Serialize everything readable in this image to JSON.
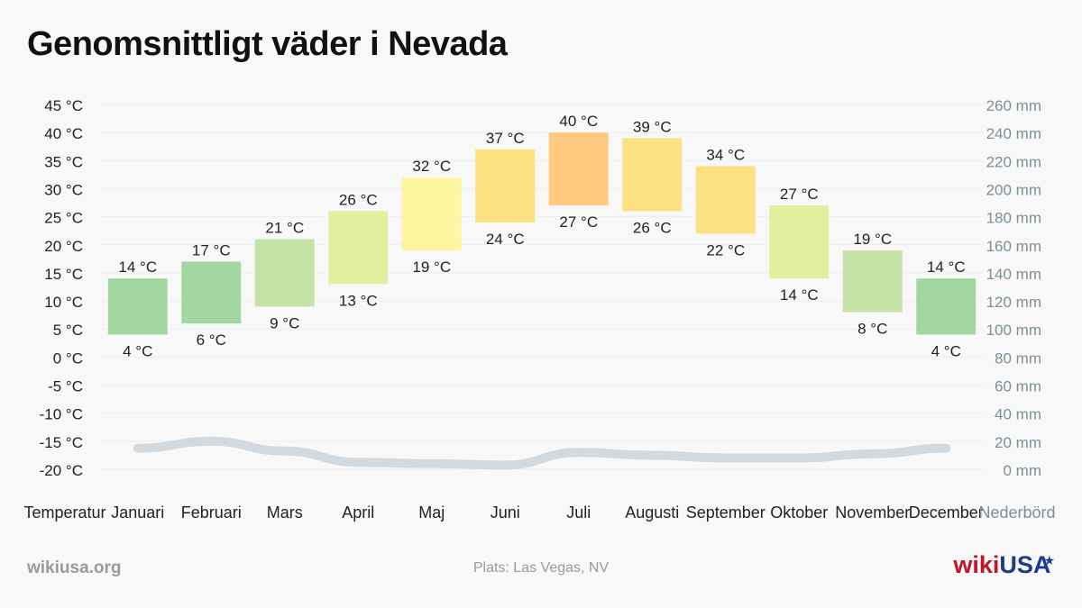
{
  "title": "Genomsnittligt väder i Nevada",
  "footer": {
    "source": "wikiusa.org",
    "location": "Plats: Las Vegas, NV",
    "brand_a": "wiki",
    "brand_b": "USA",
    "brand_star": "★"
  },
  "chart_data": {
    "type": "bar",
    "categories": [
      "Januari",
      "Februari",
      "Mars",
      "April",
      "Maj",
      "Juni",
      "Juli",
      "Augusti",
      "September",
      "Oktober",
      "November",
      "December"
    ],
    "row_label_left": "Temperatur",
    "row_label_right": "Nederbörd",
    "temp_unit": "°C",
    "precip_unit": "mm",
    "temp_ticks": [
      45,
      40,
      35,
      30,
      25,
      20,
      15,
      10,
      5,
      0,
      -5,
      -10,
      -15,
      -20
    ],
    "precip_ticks": [
      260,
      240,
      220,
      200,
      180,
      160,
      140,
      120,
      100,
      80,
      60,
      40,
      20,
      0
    ],
    "temp_range": [
      -20,
      45
    ],
    "precip_range": [
      0,
      260
    ],
    "series": [
      {
        "name": "max",
        "values": [
          14,
          17,
          21,
          26,
          32,
          37,
          40,
          39,
          34,
          27,
          19,
          14
        ]
      },
      {
        "name": "min",
        "values": [
          4,
          6,
          9,
          13,
          19,
          24,
          27,
          26,
          22,
          14,
          8,
          4
        ]
      },
      {
        "name": "precipitation",
        "values": [
          15,
          20,
          13,
          5,
          4,
          3,
          12,
          10,
          8,
          8,
          11,
          15
        ]
      }
    ],
    "colors": {
      "14": "#a3d7a1",
      "17": "#a3d7a1",
      "19": "#c5e3a7",
      "21": "#c5e3a7",
      "26": "#e3ee9e",
      "27": "#e3ee9e",
      "32": "#fdf5a0",
      "34": "#fde080",
      "37": "#fde080",
      "39": "#fde080",
      "40": "#fdca80",
      "precip_line": "#d3dadf",
      "grid": "#eeeeee",
      "precip_text": "#7d8f98"
    }
  }
}
